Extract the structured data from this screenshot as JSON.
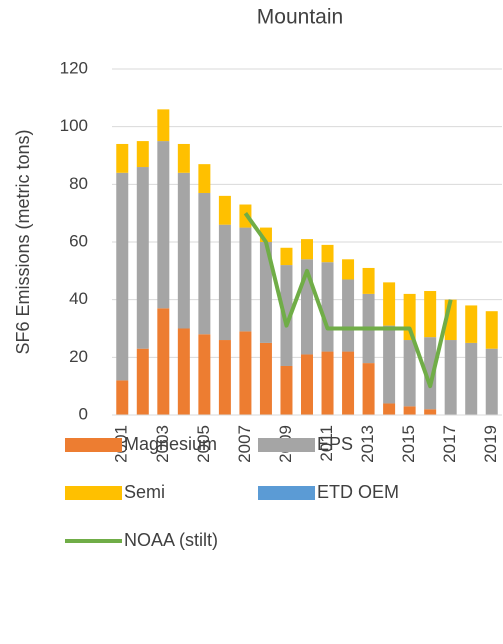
{
  "chart_data": {
    "type": "bar",
    "stacked": true,
    "title": "Mountain",
    "y_label": "SF6 Emissions (metric tons)",
    "categories": [
      "2001",
      null,
      "2003",
      null,
      "2005",
      null,
      "2007",
      null,
      "2009",
      null,
      "2011",
      null,
      "2013",
      null,
      "2015",
      null,
      "2017",
      null,
      "2019"
    ],
    "series": [
      {
        "name": "Magnesium",
        "color": "#ED7D31",
        "values": [
          12,
          23,
          37,
          30,
          28,
          26,
          29,
          25,
          17,
          21,
          22,
          22,
          18,
          4,
          3,
          2,
          0,
          0,
          0
        ]
      },
      {
        "name": "EPS",
        "color": "#A5A5A5",
        "values": [
          72,
          63,
          58,
          54,
          49,
          40,
          36,
          35,
          35,
          33,
          31,
          25,
          24,
          27,
          23,
          25,
          26,
          25,
          23
        ]
      },
      {
        "name": "Semi",
        "color": "#FFC000",
        "values": [
          10,
          9,
          11,
          10,
          10,
          10,
          8,
          5,
          6,
          7,
          6,
          7,
          9,
          15,
          16,
          16,
          14,
          13,
          13
        ]
      },
      {
        "name": "ETD OEM",
        "color": "#5B9BD5",
        "values": [
          0,
          0,
          0,
          0,
          0,
          0,
          0,
          0,
          0,
          0,
          0,
          0,
          0,
          0,
          0,
          0,
          0,
          0,
          0
        ]
      },
      {
        "name": "NOAA (stilt)",
        "type": "line",
        "color": "#70AD47",
        "values": [
          null,
          null,
          null,
          null,
          null,
          null,
          70,
          60,
          31,
          50,
          30,
          30,
          30,
          30,
          30,
          10,
          40,
          null,
          null
        ]
      }
    ],
    "ylim": [
      0,
      120
    ],
    "yticks": [
      0,
      20,
      40,
      60,
      80,
      100,
      120
    ],
    "grid": true
  }
}
